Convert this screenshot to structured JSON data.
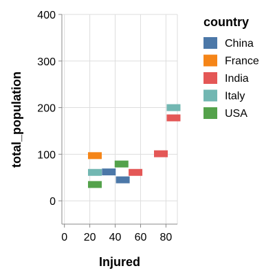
{
  "chart_data": {
    "type": "scatter",
    "mark": "rect-tick",
    "xlabel": "Injured",
    "ylabel": "total_population",
    "xlim": [
      -2,
      89
    ],
    "ylim": [
      -50,
      400
    ],
    "x_ticks": [
      0,
      20,
      40,
      60,
      80
    ],
    "y_ticks": [
      0,
      100,
      200,
      300,
      400
    ],
    "grid": true,
    "legend": {
      "title": "country",
      "placement": "right"
    },
    "series": [
      {
        "name": "China",
        "color": "#4c78a8",
        "points": [
          {
            "x": 35,
            "y": 62
          },
          {
            "x": 46,
            "y": 45
          }
        ]
      },
      {
        "name": "France",
        "color": "#f58518",
        "points": [
          {
            "x": 24,
            "y": 97
          }
        ]
      },
      {
        "name": "India",
        "color": "#e45756",
        "points": [
          {
            "x": 56,
            "y": 61
          },
          {
            "x": 76,
            "y": 101
          },
          {
            "x": 86,
            "y": 178
          }
        ]
      },
      {
        "name": "Italy",
        "color": "#72b7b2",
        "points": [
          {
            "x": 24,
            "y": 61
          },
          {
            "x": 86,
            "y": 200
          }
        ]
      },
      {
        "name": "USA",
        "color": "#54a24b",
        "points": [
          {
            "x": 24,
            "y": 35
          },
          {
            "x": 45,
            "y": 79
          }
        ]
      }
    ]
  }
}
